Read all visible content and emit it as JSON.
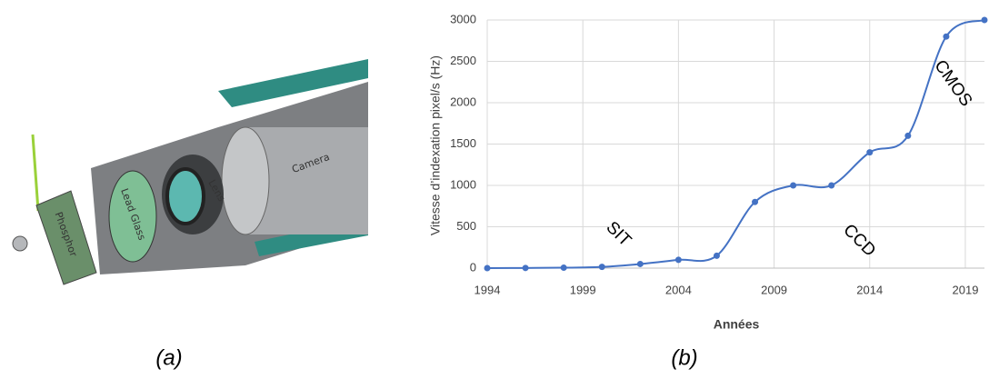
{
  "panel_a": {
    "caption": "(a)",
    "labels": [
      "Phosphor",
      "Lead Glass",
      "Lens",
      "Camera"
    ]
  },
  "chart_data": {
    "type": "line",
    "caption": "(b)",
    "x_label": "Années",
    "y_label": "Vitesse d’indexation pixel/s (Hz)",
    "x": [
      1994,
      1996,
      1998,
      2000,
      2002,
      2004,
      2006,
      2008,
      2010,
      2012,
      2014,
      2016,
      2018,
      2020
    ],
    "series": [
      {
        "name": "Vitesse",
        "color": "#4472c4",
        "values": [
          0,
          2,
          5,
          15,
          50,
          100,
          150,
          800,
          1000,
          1000,
          1400,
          1600,
          2800,
          3000
        ]
      }
    ],
    "xlim": [
      1994,
      2020
    ],
    "xticks": [
      1994,
      1999,
      2004,
      2009,
      2014,
      2019
    ],
    "ylim": [
      0,
      3000
    ],
    "yticks": [
      0,
      500,
      1000,
      1500,
      2000,
      2500,
      3000
    ],
    "grid": true,
    "smooth": true,
    "annotations": [
      "SIT",
      "CCD",
      "CMOS"
    ]
  }
}
